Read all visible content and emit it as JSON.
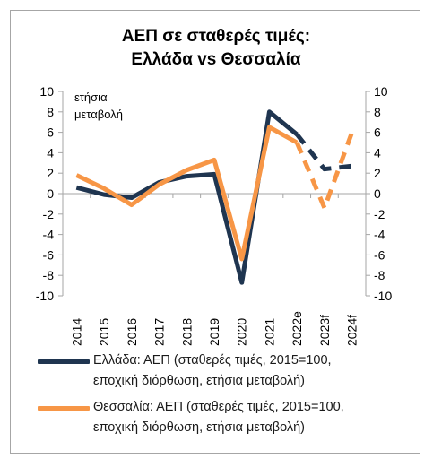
{
  "colors": {
    "greece": "#1f3550",
    "thessaly": "#f79646",
    "frame": "#a6a6a6",
    "grid": "#a6a6a6"
  },
  "chart_data": {
    "type": "line",
    "title_lines": [
      "ΑΕΠ σε σταθερές τιμές:",
      "Ελλάδα vs Θεσσαλία"
    ],
    "annotation_lines": [
      "ετήσια",
      "μεταβολή"
    ],
    "categories": [
      "2014",
      "2015",
      "2016",
      "2017",
      "2018",
      "2019",
      "2020",
      "2021",
      "2022e",
      "2023f",
      "2024f"
    ],
    "ylim": [
      -10,
      10
    ],
    "yticks": [
      10,
      8,
      6,
      4,
      2,
      0,
      -2,
      -4,
      -6,
      -8,
      -10
    ],
    "secondary_axis": true,
    "grid": false,
    "forecast_from_index": 8,
    "forecast_style": "dashed",
    "legend_position": "bottom",
    "series": [
      {
        "name": "Ελλάδα: ΑΕΠ (σταθερές τιμές, 2015=100, εποχική διόρθωση, ετήσια μεταβολή)",
        "legend_lines": [
          "Ελλάδα: ΑΕΠ (σταθερές τιμές, 2015=100,",
          "εποχική διόρθωση, ετήσια μεταβολή)"
        ],
        "color": "#1f3550",
        "values": [
          0.6,
          -0.1,
          -0.4,
          1.1,
          1.7,
          1.9,
          -8.7,
          8.0,
          5.8,
          2.4,
          2.7
        ]
      },
      {
        "name": "Θεσσαλία: ΑΕΠ (σταθερές τιμές, 2015=100, εποχική διόρθωση, ετήσια μεταβολή)",
        "legend_lines": [
          "Θεσσαλία: ΑΕΠ (σταθερές τιμές, 2015=100,",
          "εποχική διόρθωση, ετήσια μεταβολή)"
        ],
        "color": "#f79646",
        "values": [
          1.8,
          0.5,
          -1.1,
          0.9,
          2.3,
          3.3,
          -6.4,
          6.5,
          5.0,
          -1.4,
          6.0
        ]
      }
    ]
  }
}
